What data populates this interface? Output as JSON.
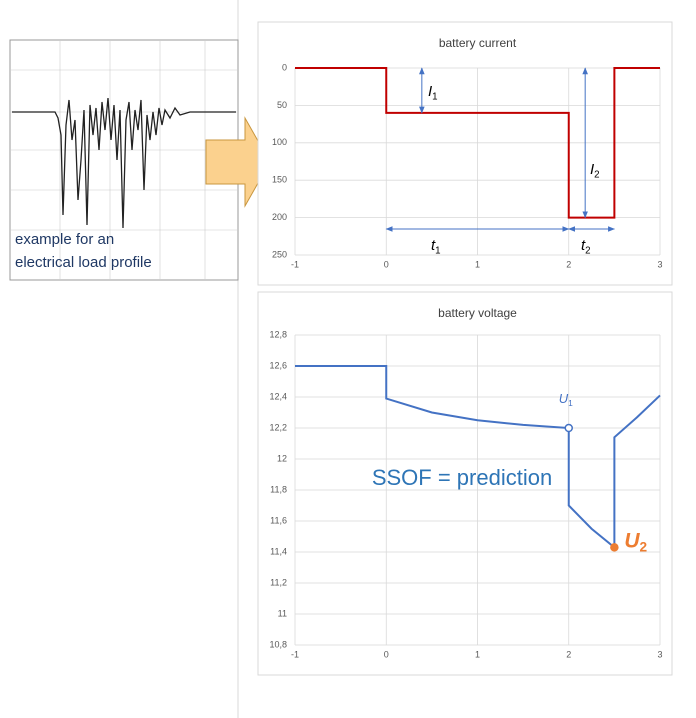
{
  "load_profile": {
    "caption": [
      "example  for an",
      "electrical load profile"
    ]
  },
  "chart_data": [
    {
      "type": "line",
      "title": "battery current",
      "x": [
        -1,
        0,
        0,
        2,
        2,
        2.5,
        2.5,
        3
      ],
      "series": [
        {
          "color": "#c00000",
          "values": [
            0,
            0,
            60,
            60,
            200,
            200,
            0,
            0
          ]
        }
      ],
      "xlim": [
        -1,
        3
      ],
      "xticks": [
        -1,
        0,
        1,
        2,
        3
      ],
      "ylim": [
        250,
        0
      ],
      "yticks": [
        0,
        50,
        100,
        150,
        200,
        250
      ],
      "grid": true,
      "annotations": [
        {
          "text": "I",
          "sub": "1"
        },
        {
          "text": "I",
          "sub": "2"
        },
        {
          "text": "t",
          "sub": "1"
        },
        {
          "text": "t",
          "sub": "2"
        }
      ]
    },
    {
      "type": "line",
      "title": "battery voltage",
      "x": [
        -1,
        0,
        0,
        0.5,
        1,
        1.5,
        2,
        2,
        2.25,
        2.5,
        2.5,
        2.75,
        3
      ],
      "series": [
        {
          "color": "#4472c4",
          "values": [
            12.6,
            12.6,
            12.39,
            12.3,
            12.25,
            12.22,
            12.2,
            11.7,
            11.55,
            11.43,
            12.14,
            12.27,
            12.41
          ]
        }
      ],
      "xlim": [
        -1,
        3
      ],
      "xticks": [
        -1,
        0,
        1,
        2,
        3
      ],
      "ylim": [
        10.8,
        12.8
      ],
      "yticks": [
        {
          "value": 10.8,
          "label": "10,8"
        },
        11,
        {
          "value": 11.2,
          "label": "11,2"
        },
        {
          "value": 11.4,
          "label": "11,4"
        },
        {
          "value": 11.6,
          "label": "11,6"
        },
        {
          "value": 11.8,
          "label": "11,8"
        },
        12,
        {
          "value": 12.2,
          "label": "12,2"
        },
        {
          "value": 12.4,
          "label": "12,4"
        },
        {
          "value": 12.6,
          "label": "12,6"
        },
        {
          "value": 12.8,
          "label": "12,8"
        }
      ],
      "grid": true,
      "annotations": [
        {
          "text": "SSOF = prediction"
        }
      ],
      "markers": [
        {
          "label": "U",
          "sub": "1",
          "x": 2,
          "y": 12.2,
          "color": "#4472c4"
        },
        {
          "label": "U",
          "sub": "2",
          "x": 2.5,
          "y": 11.43,
          "color": "#ed7d31"
        }
      ]
    }
  ]
}
